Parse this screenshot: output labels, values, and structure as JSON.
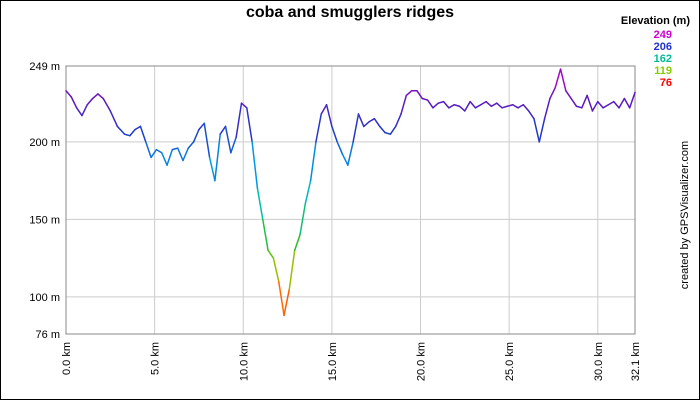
{
  "chart_data": {
    "type": "line",
    "title": "coba and smugglers ridges",
    "xlabel": "",
    "ylabel": "",
    "xlim": [
      0,
      32.1
    ],
    "ylim": [
      76,
      249
    ],
    "x_ticks": [
      "0.0 km",
      "5.0 km",
      "10.0 km",
      "15.0 km",
      "20.0 km",
      "25.0 km",
      "30.0 km",
      "32.1 km"
    ],
    "y_ticks": [
      "76 m",
      "100 m",
      "150 m",
      "200 m",
      "249 m"
    ],
    "grid": true,
    "legend": {
      "title": "Elevation (m)",
      "placement": "top-right",
      "entries": [
        {
          "label": "249",
          "color": "#cc00cc"
        },
        {
          "label": "206",
          "color": "#2233cc"
        },
        {
          "label": "162",
          "color": "#00bb99"
        },
        {
          "label": "119",
          "color": "#88cc00"
        },
        {
          "label": "76",
          "color": "#ff0000"
        }
      ]
    },
    "series": [
      {
        "x": [
          0.0,
          0.3,
          0.6,
          0.9,
          1.2,
          1.5,
          1.8,
          2.1,
          2.5,
          2.9,
          3.3,
          3.6,
          3.9,
          4.2,
          4.5,
          4.8,
          5.1,
          5.4,
          5.7,
          6.0,
          6.3,
          6.6,
          6.9,
          7.2,
          7.5,
          7.8,
          8.1,
          8.4,
          8.7,
          9.0,
          9.3,
          9.6,
          9.9,
          10.2,
          10.5,
          10.8,
          11.1,
          11.4,
          11.7,
          12.0,
          12.3,
          12.6,
          12.9,
          13.2,
          13.5,
          13.8,
          14.1,
          14.4,
          14.7,
          15.0,
          15.3,
          15.6,
          15.9,
          16.2,
          16.5,
          16.8,
          17.1,
          17.4,
          17.7,
          18.0,
          18.3,
          18.6,
          18.9,
          19.2,
          19.5,
          19.8,
          20.1,
          20.4,
          20.7,
          21.0,
          21.3,
          21.6,
          21.9,
          22.2,
          22.5,
          22.8,
          23.1,
          23.4,
          23.7,
          24.0,
          24.3,
          24.6,
          24.9,
          25.2,
          25.5,
          25.8,
          26.1,
          26.4,
          26.7,
          27.0,
          27.3,
          27.6,
          27.9,
          28.2,
          28.5,
          28.8,
          29.1,
          29.4,
          29.7,
          30.0,
          30.3,
          30.6,
          30.9,
          31.2,
          31.5,
          31.8,
          32.1
        ],
        "y": [
          233,
          229,
          222,
          217,
          224,
          228,
          231,
          228,
          220,
          210,
          205,
          204,
          208,
          210,
          200,
          190,
          195,
          193,
          185,
          195,
          196,
          188,
          196,
          200,
          208,
          212,
          190,
          175,
          205,
          210,
          193,
          203,
          225,
          222,
          200,
          170,
          150,
          130,
          125,
          110,
          88,
          105,
          130,
          140,
          160,
          175,
          200,
          218,
          224,
          210,
          200,
          192,
          185,
          200,
          218,
          210,
          213,
          215,
          210,
          206,
          205,
          210,
          218,
          230,
          233,
          233,
          228,
          227,
          222,
          225,
          226,
          222,
          224,
          223,
          220,
          226,
          222,
          224,
          226,
          223,
          225,
          222,
          223,
          224,
          222,
          224,
          220,
          215,
          200,
          215,
          228,
          235,
          247,
          233,
          228,
          223,
          222,
          230,
          220,
          226,
          222,
          224,
          226,
          222,
          228,
          222,
          232
        ]
      }
    ]
  },
  "credit": "created by GPSVisualizer.com"
}
